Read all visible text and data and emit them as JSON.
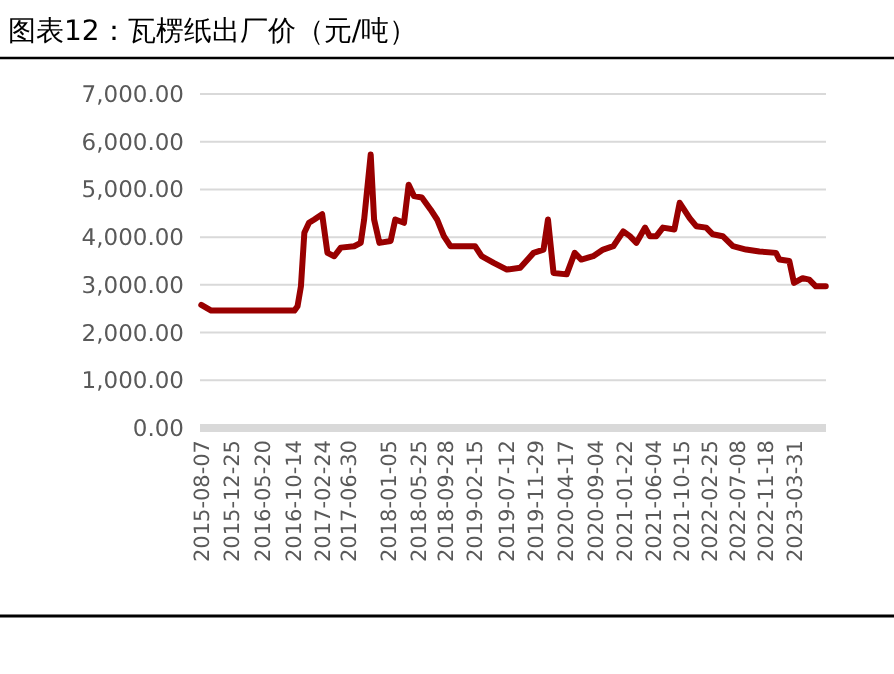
{
  "chart_data": {
    "type": "line",
    "title": "图表12：瓦楞纸出厂价（元/吨）",
    "x": [
      "2015-08-07",
      "2015-09-23",
      "2016-10-19",
      "2016-11-03",
      "2016-11-19",
      "2016-12-05",
      "2016-12-27",
      "2017-01-21",
      "2017-02-27",
      "2017-03-24",
      "2017-04-25",
      "2017-05-26",
      "2017-07-28",
      "2017-08-28",
      "2017-09-13",
      "2017-10-14",
      "2017-10-30",
      "2017-11-24",
      "2018-01-16",
      "2018-02-07",
      "2018-03-20",
      "2018-04-11",
      "2018-05-06",
      "2018-06-12",
      "2018-07-23",
      "2018-08-23",
      "2018-09-24",
      "2018-10-25",
      "2019-01-11",
      "2019-02-18",
      "2019-03-21",
      "2019-05-17",
      "2019-07-18",
      "2019-09-19",
      "2019-11-21",
      "2020-01-07",
      "2020-01-28",
      "2020-02-23",
      "2020-04-25",
      "2020-06-02",
      "2020-07-03",
      "2020-08-28",
      "2020-10-14",
      "2020-12-01",
      "2021-01-17",
      "2021-02-17",
      "2021-03-20",
      "2021-04-30",
      "2021-05-22",
      "2021-06-22",
      "2021-07-23",
      "2021-09-15",
      "2021-10-10",
      "2021-11-26",
      "2021-12-27",
      "2022-02-12",
      "2022-03-15",
      "2022-05-01",
      "2022-06-18",
      "2022-08-19",
      "2022-10-21",
      "2023-01-07",
      "2023-01-23",
      "2023-03-11",
      "2023-04-02",
      "2023-05-13",
      "2023-06-13",
      "2023-07-14",
      "2023-08-30"
    ],
    "series": [
      {
        "color": "#990000",
        "values": [
          2580,
          2460,
          2460,
          2550,
          2970,
          4090,
          4300,
          4370,
          4480,
          3670,
          3600,
          3780,
          3810,
          3880,
          4370,
          5730,
          4370,
          3880,
          3920,
          4370,
          4300,
          5100,
          4860,
          4830,
          4580,
          4370,
          4020,
          3810,
          3810,
          3810,
          3600,
          3460,
          3320,
          3360,
          3670,
          3740,
          4370,
          3250,
          3220,
          3670,
          3530,
          3600,
          3740,
          3810,
          4120,
          4020,
          3880,
          4200,
          4020,
          4020,
          4200,
          4160,
          4720,
          4400,
          4230,
          4200,
          4060,
          4020,
          3810,
          3740,
          3700,
          3670,
          3530,
          3500,
          3040,
          3140,
          3110,
          2970,
          2970
        ]
      }
    ],
    "xlim": [
      "2015-08-01",
      "2023-08-31"
    ],
    "xticks": [
      "2015-08-07",
      "2015-12-25",
      "2016-05-20",
      "2016-10-14",
      "2017-02-24",
      "2017-06-30",
      "2018-01-05",
      "2018-05-25",
      "2018-09-28",
      "2019-02-15",
      "2019-07-12",
      "2019-11-29",
      "2020-04-17",
      "2020-09-04",
      "2021-01-22",
      "2021-06-04",
      "2021-10-15",
      "2022-02-25",
      "2022-07-08",
      "2022-11-18",
      "2023-03-31"
    ],
    "ylim": [
      0,
      7000
    ],
    "yticks": [
      {
        "value": 0,
        "label": "0.00"
      },
      {
        "value": 1000,
        "label": "1,000.00"
      },
      {
        "value": 2000,
        "label": "2,000.00"
      },
      {
        "value": 3000,
        "label": "3,000.00"
      },
      {
        "value": 4000,
        "label": "4,000.00"
      },
      {
        "value": 5000,
        "label": "5,000.00"
      },
      {
        "value": 6000,
        "label": "6,000.00"
      },
      {
        "value": 7000,
        "label": "7,000.00"
      }
    ],
    "grid": "y",
    "line_style": "solid",
    "marker": "none"
  }
}
